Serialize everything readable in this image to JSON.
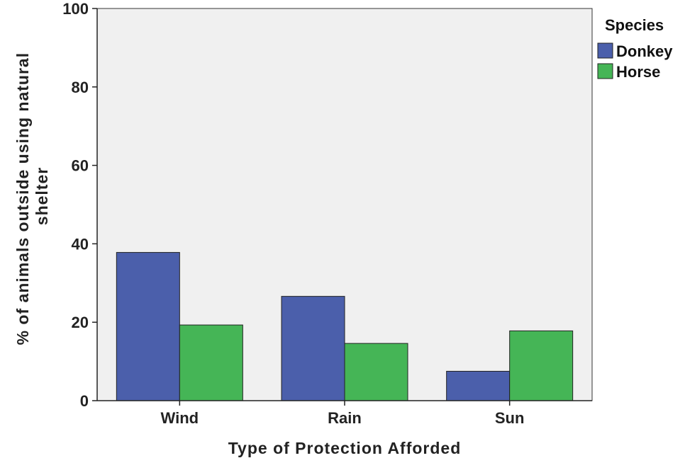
{
  "chart_data": {
    "type": "bar",
    "xlabel": "Type of Protection Afforded",
    "ylabel_lines": [
      "% of animals outside using natural",
      "shelter"
    ],
    "categories": [
      "Wind",
      "Rain",
      "Sun"
    ],
    "ylim": [
      0,
      100
    ],
    "yticks": [
      0,
      20,
      40,
      60,
      80,
      100
    ],
    "grid": false,
    "legend": {
      "title": "Species",
      "placement": "right"
    },
    "series": [
      {
        "name": "Donkey",
        "color": "#4b5fab",
        "values": [
          37.8,
          26.6,
          7.5
        ]
      },
      {
        "name": "Horse",
        "color": "#45b556",
        "values": [
          19.3,
          14.6,
          17.8
        ]
      }
    ],
    "plot_background": "#f0f0f0"
  }
}
